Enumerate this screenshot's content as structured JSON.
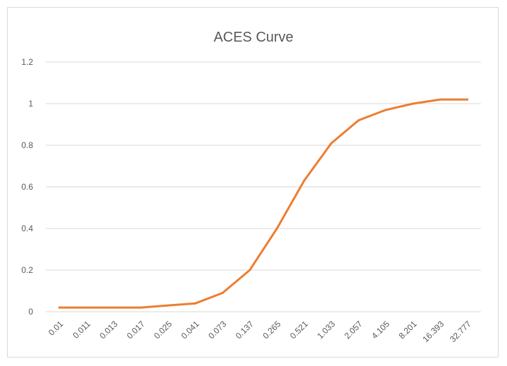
{
  "chart_data": {
    "type": "line",
    "title": "ACES Curve",
    "xlabel": "",
    "ylabel": "",
    "categories": [
      "0.01",
      "0.011",
      "0.013",
      "0.017",
      "0.025",
      "0.041",
      "0.073",
      "0.137",
      "0.265",
      "0.521",
      "1.033",
      "2.057",
      "4.105",
      "8.201",
      "16.393",
      "32.777"
    ],
    "series": [
      {
        "values": [
          0.02,
          0.02,
          0.02,
          0.02,
          0.03,
          0.04,
          0.09,
          0.2,
          0.4,
          0.63,
          0.81,
          0.92,
          0.97,
          1.0,
          1.02,
          1.02
        ],
        "color": "#ed7d31"
      }
    ],
    "ylim": [
      0,
      1.2
    ],
    "yticks": [
      "0",
      "0.2",
      "0.4",
      "0.6",
      "0.8",
      "1",
      "1.2"
    ],
    "grid": true,
    "legend": "none",
    "colors": {
      "line": "#ed7d31",
      "grid": "#d9d9d9",
      "text": "#595959",
      "border": "#d9d9d9"
    }
  }
}
